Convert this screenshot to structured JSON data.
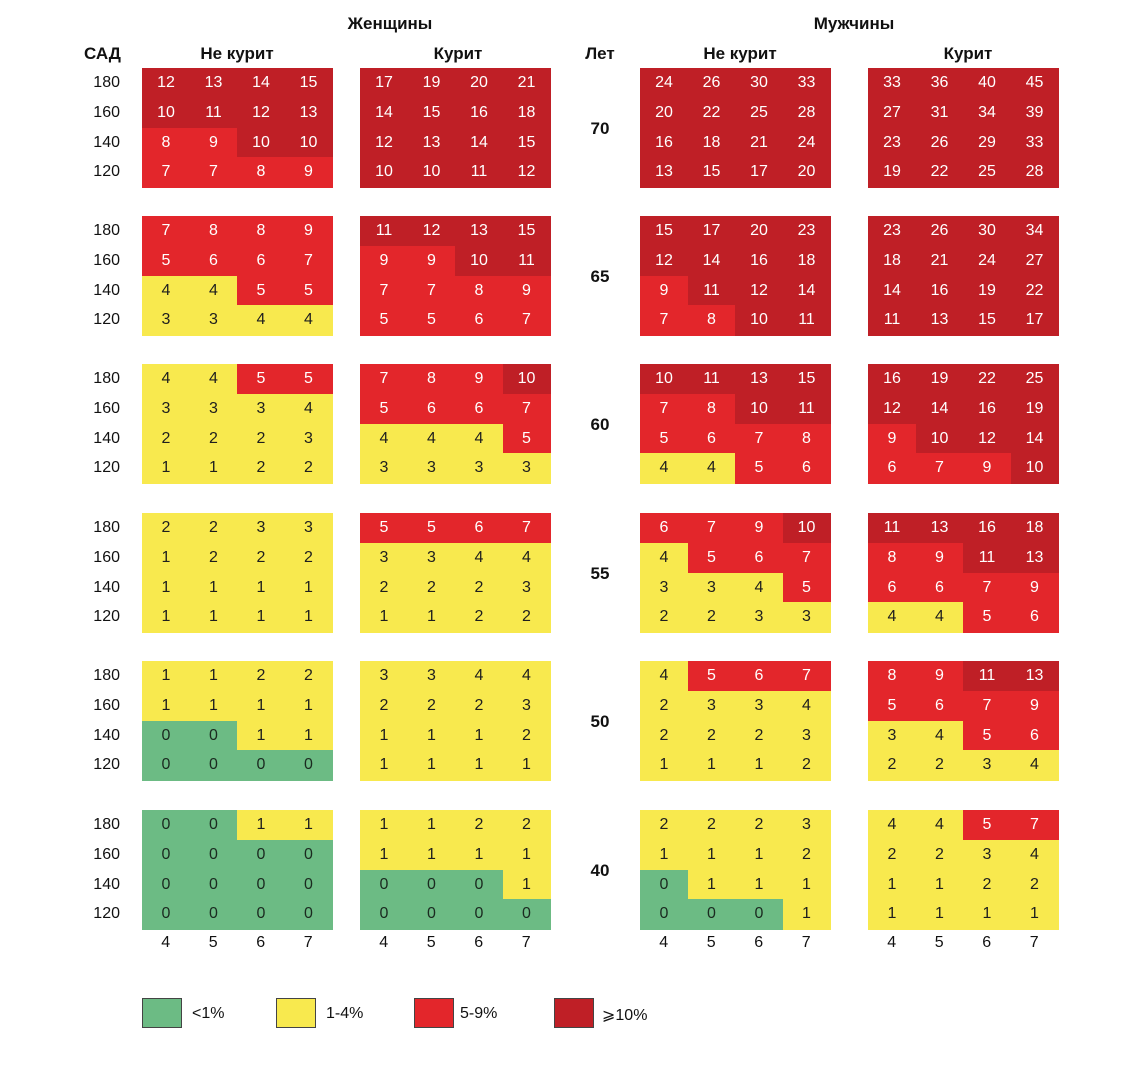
{
  "chart_data": {
    "type": "heatmap",
    "headers": {
      "women": "Женщины",
      "men": "Мужчины",
      "non_smoker": "Не курит",
      "smoker": "Курит",
      "sbp": "САД",
      "years": "Лет"
    },
    "row_labels": [
      "180",
      "160",
      "140",
      "120"
    ],
    "col_labels": [
      "4",
      "5",
      "6",
      "7"
    ],
    "ages": [
      "70",
      "65",
      "60",
      "55",
      "50",
      "40"
    ],
    "thresholds": {
      "c1_min": 1,
      "c2_min": 5,
      "c3_min": 10
    },
    "panels": [
      {
        "age": "70",
        "women_non_smoker": [
          [
            12,
            13,
            14,
            15
          ],
          [
            10,
            11,
            12,
            13
          ],
          [
            8,
            9,
            10,
            10
          ],
          [
            7,
            7,
            8,
            9
          ]
        ],
        "women_smoker": [
          [
            17,
            19,
            20,
            21
          ],
          [
            14,
            15,
            16,
            18
          ],
          [
            12,
            13,
            14,
            15
          ],
          [
            10,
            10,
            11,
            12
          ]
        ],
        "men_non_smoker": [
          [
            24,
            26,
            30,
            33
          ],
          [
            20,
            22,
            25,
            28
          ],
          [
            16,
            18,
            21,
            24
          ],
          [
            13,
            15,
            17,
            20
          ]
        ],
        "men_smoker": [
          [
            33,
            36,
            40,
            45
          ],
          [
            27,
            31,
            34,
            39
          ],
          [
            23,
            26,
            29,
            33
          ],
          [
            19,
            22,
            25,
            28
          ]
        ]
      },
      {
        "age": "65",
        "women_non_smoker": [
          [
            7,
            8,
            8,
            9
          ],
          [
            5,
            6,
            6,
            7
          ],
          [
            4,
            4,
            5,
            5
          ],
          [
            3,
            3,
            4,
            4
          ]
        ],
        "women_smoker": [
          [
            11,
            12,
            13,
            15
          ],
          [
            9,
            9,
            10,
            11
          ],
          [
            7,
            7,
            8,
            9
          ],
          [
            5,
            5,
            6,
            7
          ]
        ],
        "men_non_smoker": [
          [
            15,
            17,
            20,
            23
          ],
          [
            12,
            14,
            16,
            18
          ],
          [
            9,
            11,
            12,
            14
          ],
          [
            7,
            8,
            10,
            11
          ]
        ],
        "men_smoker": [
          [
            23,
            26,
            30,
            34
          ],
          [
            18,
            21,
            24,
            27
          ],
          [
            14,
            16,
            19,
            22
          ],
          [
            11,
            13,
            15,
            17
          ]
        ]
      },
      {
        "age": "60",
        "women_non_smoker": [
          [
            4,
            4,
            5,
            5
          ],
          [
            3,
            3,
            3,
            4
          ],
          [
            2,
            2,
            2,
            3
          ],
          [
            1,
            1,
            2,
            2
          ]
        ],
        "women_smoker": [
          [
            7,
            8,
            9,
            10
          ],
          [
            5,
            6,
            6,
            7
          ],
          [
            4,
            4,
            4,
            5
          ],
          [
            3,
            3,
            3,
            3
          ]
        ],
        "men_non_smoker": [
          [
            10,
            11,
            13,
            15
          ],
          [
            7,
            8,
            10,
            11
          ],
          [
            5,
            6,
            7,
            8
          ],
          [
            4,
            4,
            5,
            6
          ]
        ],
        "men_smoker": [
          [
            16,
            19,
            22,
            25
          ],
          [
            12,
            14,
            16,
            19
          ],
          [
            9,
            10,
            12,
            14
          ],
          [
            6,
            7,
            9,
            10
          ]
        ]
      },
      {
        "age": "55",
        "women_non_smoker": [
          [
            2,
            2,
            3,
            3
          ],
          [
            1,
            2,
            2,
            2
          ],
          [
            1,
            1,
            1,
            1
          ],
          [
            1,
            1,
            1,
            1
          ]
        ],
        "women_smoker": [
          [
            5,
            5,
            6,
            7
          ],
          [
            3,
            3,
            4,
            4
          ],
          [
            2,
            2,
            2,
            3
          ],
          [
            1,
            1,
            2,
            2
          ]
        ],
        "men_non_smoker": [
          [
            6,
            7,
            9,
            10
          ],
          [
            4,
            5,
            6,
            7
          ],
          [
            3,
            3,
            4,
            5
          ],
          [
            2,
            2,
            3,
            3
          ]
        ],
        "men_smoker": [
          [
            11,
            13,
            16,
            18
          ],
          [
            8,
            9,
            11,
            13
          ],
          [
            6,
            6,
            7,
            9
          ],
          [
            4,
            4,
            5,
            6
          ]
        ]
      },
      {
        "age": "50",
        "women_non_smoker": [
          [
            1,
            1,
            2,
            2
          ],
          [
            1,
            1,
            1,
            1
          ],
          [
            0,
            0,
            1,
            1
          ],
          [
            0,
            0,
            0,
            0
          ]
        ],
        "women_smoker": [
          [
            3,
            3,
            4,
            4
          ],
          [
            2,
            2,
            2,
            3
          ],
          [
            1,
            1,
            1,
            2
          ],
          [
            1,
            1,
            1,
            1
          ]
        ],
        "men_non_smoker": [
          [
            4,
            5,
            6,
            7
          ],
          [
            2,
            3,
            3,
            4
          ],
          [
            2,
            2,
            2,
            3
          ],
          [
            1,
            1,
            1,
            2
          ]
        ],
        "men_smoker": [
          [
            8,
            9,
            11,
            13
          ],
          [
            5,
            6,
            7,
            9
          ],
          [
            3,
            4,
            5,
            6
          ],
          [
            2,
            2,
            3,
            4
          ]
        ]
      },
      {
        "age": "40",
        "women_non_smoker": [
          [
            0,
            0,
            1,
            1
          ],
          [
            0,
            0,
            0,
            0
          ],
          [
            0,
            0,
            0,
            0
          ],
          [
            0,
            0,
            0,
            0
          ]
        ],
        "women_smoker": [
          [
            1,
            1,
            2,
            2
          ],
          [
            1,
            1,
            1,
            1
          ],
          [
            0,
            0,
            0,
            1
          ],
          [
            0,
            0,
            0,
            0
          ]
        ],
        "men_non_smoker": [
          [
            2,
            2,
            2,
            3
          ],
          [
            1,
            1,
            1,
            2
          ],
          [
            0,
            1,
            1,
            1
          ],
          [
            0,
            0,
            0,
            1
          ]
        ],
        "men_smoker": [
          [
            4,
            4,
            5,
            7
          ],
          [
            2,
            2,
            3,
            4
          ],
          [
            1,
            1,
            2,
            2
          ],
          [
            1,
            1,
            1,
            1
          ]
        ]
      }
    ],
    "legend": [
      {
        "label": "<1%",
        "color": "#6cbb84"
      },
      {
        "label": "1-4%",
        "color": "#f8e94e"
      },
      {
        "label": "5-9%",
        "color": "#e3262b"
      },
      {
        "label": "⩾10%",
        "color": "#bf1f26"
      }
    ]
  }
}
